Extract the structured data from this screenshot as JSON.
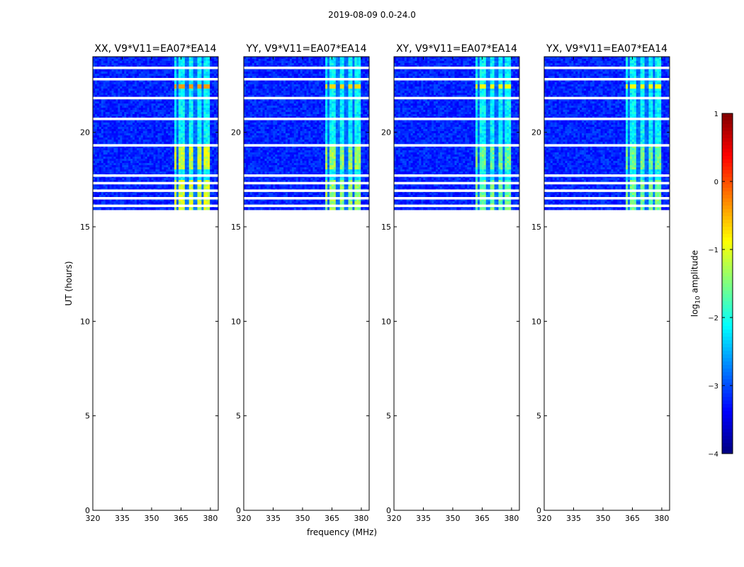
{
  "figure_title": "2019-08-09 0.0-24.0",
  "chart_data": {
    "type": "heatmap",
    "title": "2019-08-09 0.0-24.0",
    "xlabel": "frequency (MHz)",
    "ylabel": "UT (hours)",
    "xlim": [
      320,
      384
    ],
    "ylim": [
      0,
      24
    ],
    "xticks": [
      "320",
      "335",
      "350",
      "365",
      "380"
    ],
    "yticks": [
      "0",
      "5",
      "10",
      "15",
      "20"
    ],
    "data_ut_range_hours": [
      15.9,
      24.0
    ],
    "rfi_band_mhz": [
      361.5,
      380
    ],
    "rfi_channel_gaps_mhz": [
      362.8,
      368,
      372.3,
      376.2
    ],
    "flagged_rows_ut": [
      16.1,
      16.5,
      16.9,
      17.3,
      17.7,
      19.3,
      20.7,
      21.8,
      22.8,
      23.4
    ],
    "panels": [
      {
        "title": "XX, V9*V11=EA07*EA14",
        "baseline": "EA07*EA14",
        "pol": "XX",
        "rfi_peak_log10": -0.6,
        "hot_row_ut": 22.4
      },
      {
        "title": "YY, V9*V11=EA07*EA14",
        "baseline": "EA07*EA14",
        "pol": "YY",
        "rfi_peak_log10": -0.9,
        "hot_row_ut": 22.4
      },
      {
        "title": "XY, V9*V11=EA07*EA14",
        "baseline": "EA07*EA14",
        "pol": "XY",
        "rfi_peak_log10": -1.1,
        "hot_row_ut": 22.4
      },
      {
        "title": "YX, V9*V11=EA07*EA14",
        "baseline": "EA07*EA14",
        "pol": "YX",
        "rfi_peak_log10": -1.1,
        "hot_row_ut": 22.4
      }
    ],
    "colorbar": {
      "label_main": "log",
      "label_sub": "10",
      "label_tail": " amplitude",
      "range": [
        -4,
        1
      ],
      "ticks": [
        "1",
        "0",
        "−1",
        "−2",
        "−3",
        "−4"
      ],
      "tick_values": [
        1,
        0,
        -1,
        -2,
        -3,
        -4
      ],
      "colormap": "jet",
      "background_log10": -3.2
    }
  }
}
